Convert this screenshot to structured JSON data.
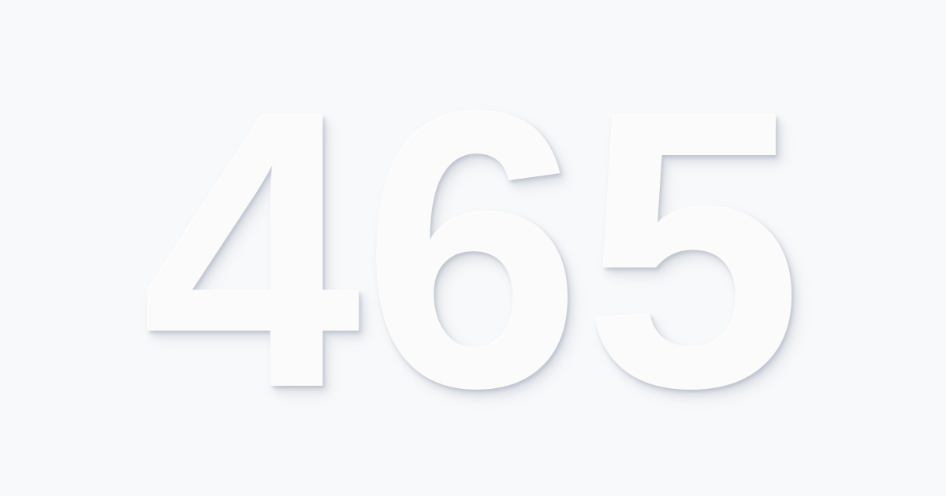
{
  "display": {
    "number": "465"
  },
  "colors": {
    "background": "#f8f9fa",
    "text": "#fbfbfc",
    "shadow": "#aab0be"
  }
}
